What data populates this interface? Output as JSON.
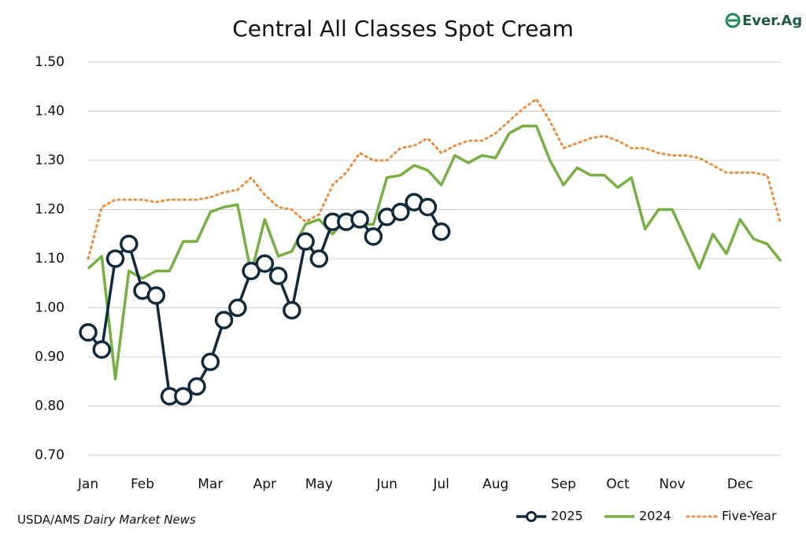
{
  "chart_data": {
    "type": "line",
    "title": "Central All Classes Spot Cream",
    "logo": "Ever.Ag",
    "source": {
      "agency": "USDA/AMS",
      "publication": "Dairy Market News"
    },
    "categories": [
      "Jan",
      null,
      null,
      null,
      "Feb",
      null,
      null,
      null,
      null,
      "Mar",
      null,
      null,
      null,
      "Apr",
      null,
      null,
      null,
      "May",
      null,
      null,
      null,
      null,
      "Jun",
      null,
      null,
      null,
      "Jul",
      null,
      null,
      null,
      "Aug",
      null,
      null,
      null,
      null,
      "Sep",
      null,
      null,
      null,
      "Oct",
      null,
      null,
      null,
      "Nov",
      null,
      null,
      null,
      null,
      "Dec",
      null,
      null,
      null
    ],
    "series": [
      {
        "name": "2025",
        "color": "#0f2a3d",
        "marker": true,
        "values": [
          0.95,
          0.915,
          1.1,
          1.13,
          1.035,
          1.025,
          0.82,
          0.82,
          0.84,
          0.89,
          0.975,
          1.0,
          1.075,
          1.09,
          1.065,
          0.995,
          1.135,
          1.1,
          1.175,
          1.175,
          1.18,
          1.145,
          1.185,
          1.195,
          1.215,
          1.205,
          1.155,
          null,
          null,
          null,
          null,
          null,
          null,
          null,
          null,
          null,
          null,
          null,
          null,
          null,
          null,
          null,
          null,
          null,
          null,
          null,
          null,
          null,
          null,
          null,
          null,
          null
        ]
      },
      {
        "name": "2024",
        "color": "#76b043",
        "marker": false,
        "values": [
          1.08,
          1.105,
          0.855,
          1.075,
          1.06,
          1.075,
          1.075,
          1.135,
          1.135,
          1.195,
          1.205,
          1.21,
          1.07,
          1.18,
          1.105,
          1.115,
          1.17,
          1.18,
          1.15,
          1.18,
          1.17,
          1.17,
          1.265,
          1.27,
          1.29,
          1.28,
          1.25,
          1.31,
          1.295,
          1.31,
          1.305,
          1.355,
          1.37,
          1.37,
          1.3,
          1.25,
          1.285,
          1.27,
          1.27,
          1.245,
          1.265,
          1.16,
          1.2,
          1.2,
          1.14,
          1.08,
          1.15,
          1.11,
          1.18,
          1.14,
          1.13,
          1.095
        ]
      },
      {
        "name": "Five-Year",
        "color": "#f08a3c",
        "marker": false,
        "dotted": true,
        "values": [
          1.1,
          1.205,
          1.22,
          1.22,
          1.22,
          1.215,
          1.22,
          1.22,
          1.22,
          1.225,
          1.235,
          1.24,
          1.265,
          1.23,
          1.205,
          1.2,
          1.175,
          1.19,
          1.25,
          1.275,
          1.315,
          1.3,
          1.3,
          1.325,
          1.33,
          1.345,
          1.315,
          1.33,
          1.34,
          1.34,
          1.355,
          1.38,
          1.405,
          1.425,
          1.38,
          1.325,
          1.335,
          1.345,
          1.35,
          1.34,
          1.325,
          1.325,
          1.315,
          1.31,
          1.31,
          1.305,
          1.29,
          1.275,
          1.275,
          1.275,
          1.27,
          1.17
        ]
      }
    ],
    "ylim": [
      0.7,
      1.5
    ],
    "yticks": [
      {
        "value": 0.7,
        "label": "0.70"
      },
      {
        "value": 0.8,
        "label": "0.80"
      },
      {
        "value": 0.9,
        "label": "0.90"
      },
      {
        "value": 1.0,
        "label": "1.00"
      },
      {
        "value": 1.1,
        "label": "1.10"
      },
      {
        "value": 1.2,
        "label": "1.20"
      },
      {
        "value": 1.3,
        "label": "1.30"
      },
      {
        "value": 1.4,
        "label": "1.40"
      },
      {
        "value": 1.5,
        "label": "1.50"
      }
    ],
    "grid": true,
    "legend": "bottom-right"
  }
}
